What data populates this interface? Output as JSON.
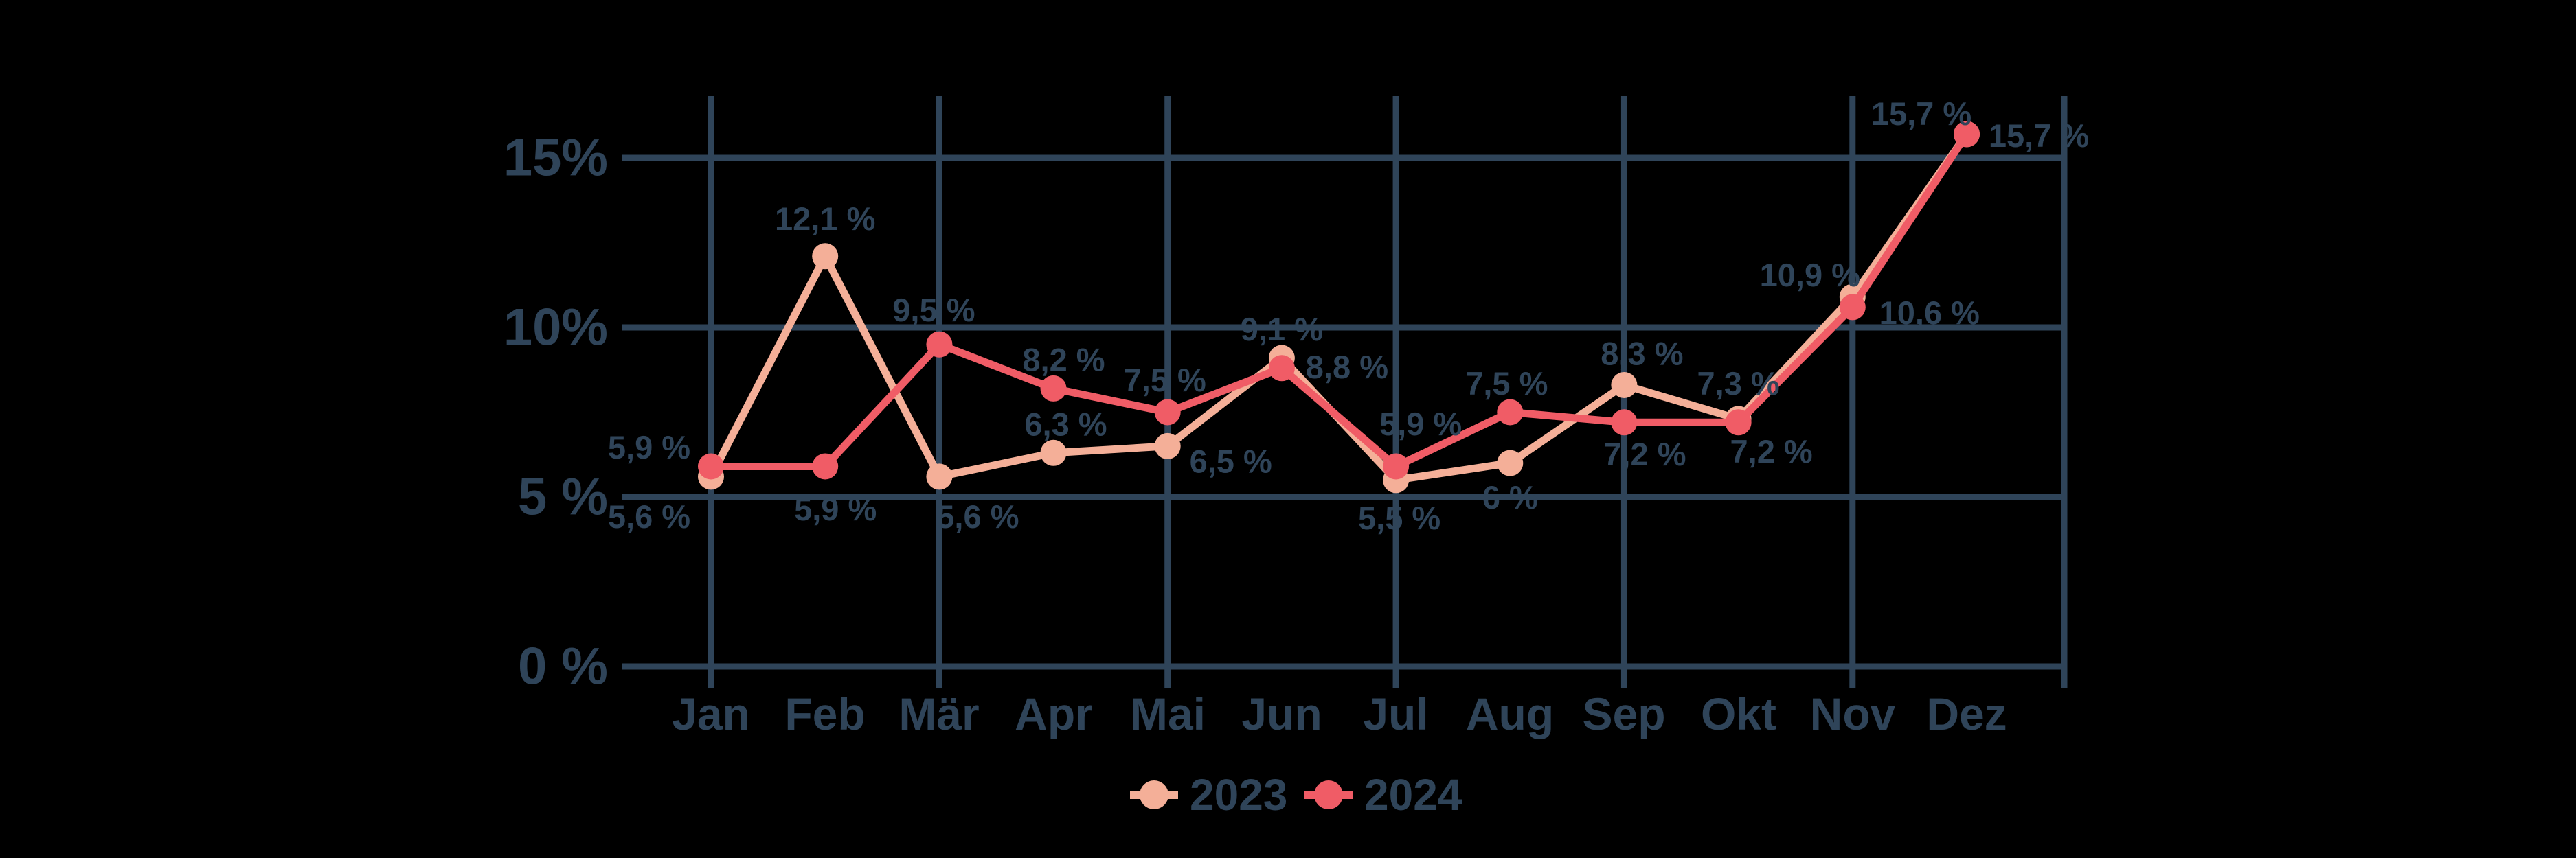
{
  "chart_data": {
    "type": "line",
    "title": "",
    "categories": [
      "Jan",
      "Feb",
      "Mär",
      "Apr",
      "Mai",
      "Jun",
      "Jul",
      "Aug",
      "Sep",
      "Okt",
      "Nov",
      "Dez"
    ],
    "y_ticks": [
      {
        "label": "15%",
        "value": 15
      },
      {
        "label": "10%",
        "value": 10
      },
      {
        "label": "5 %",
        "value": 5
      },
      {
        "label": "0 %",
        "value": 0
      }
    ],
    "ylim": [
      0,
      16.8
    ],
    "grid": {
      "horizontal": true,
      "vertical_at_months": [
        0,
        2,
        4,
        6,
        8,
        10
      ],
      "right_edge_line": true
    },
    "series": [
      {
        "name": "2023",
        "color": "#F4AF98",
        "values": [
          5.6,
          12.1,
          5.6,
          6.3,
          6.5,
          9.1,
          5.5,
          6.0,
          8.3,
          7.3,
          10.9,
          15.7
        ],
        "labels": [
          "5,6 %",
          "12,1 %",
          "5,6 %",
          "6,3 %",
          "6,5 %",
          "9,1 %",
          "5,5 %",
          "6 %",
          "8,3 %",
          "7,3 %",
          "10,9 %",
          "15,7 %"
        ]
      },
      {
        "name": "2024",
        "color": "#F05C66",
        "values": [
          5.9,
          5.9,
          9.5,
          8.2,
          7.5,
          8.8,
          5.9,
          7.5,
          7.2,
          7.2,
          10.6,
          15.7
        ],
        "labels": [
          "5,9 %",
          "5,9 %",
          "9,5 %",
          "8,2 %",
          "7,5 %",
          "8,8 %",
          "5,9 %",
          "7,5 %",
          "7,2 %",
          "7,2 %",
          "10,6 %",
          "15,7 %"
        ]
      }
    ],
    "legend": {
      "position": "bottom"
    },
    "colors": {
      "grid": "#2F4459",
      "axis_text": "#2F4459",
      "background": "#000000"
    }
  }
}
